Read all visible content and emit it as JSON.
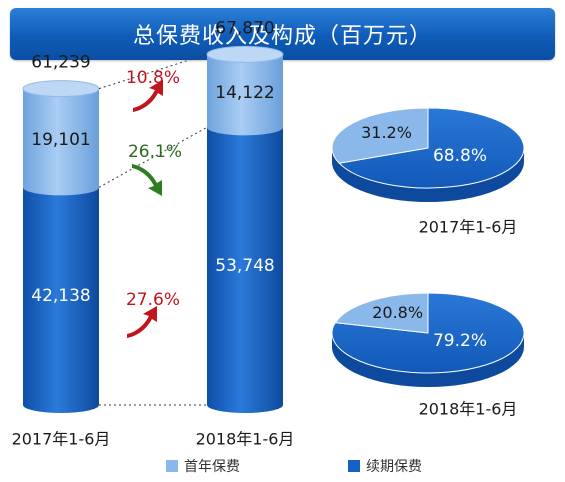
{
  "colors": {
    "first_year": "#8ab8ea",
    "renewal": "#1560c4",
    "renewal_dark": "#0d4a9e",
    "up_red": "#c0141e",
    "down_green": "#2e7d24",
    "pct_red": "#c0141e",
    "pct_green": "#2e6a1e"
  },
  "chart_data": [
    {
      "type": "bar",
      "stacked": true,
      "title": "总保费收入及构成（百万元）",
      "categories": [
        "2017年1-6月",
        "2018年1-6月"
      ],
      "series": [
        {
          "name": "续期保费",
          "values": [
            42138,
            53748
          ],
          "labels": [
            "42,138",
            "53,748"
          ]
        },
        {
          "name": "首年保费",
          "values": [
            19101,
            14122
          ],
          "labels": [
            "19,101",
            "14,122"
          ]
        }
      ],
      "totals": [
        61239,
        67870
      ],
      "total_labels": [
        "61,239",
        "67,870"
      ],
      "growth": [
        {
          "label": "10.8%",
          "direction": "up",
          "applies_to": "total"
        },
        {
          "label": "26.1%",
          "direction": "down",
          "applies_to": "首年保费"
        },
        {
          "label": "27.6%",
          "direction": "up",
          "applies_to": "续期保费"
        }
      ],
      "legend": {
        "position": "bottom",
        "items": [
          "首年保费",
          "续期保费"
        ]
      }
    },
    {
      "type": "pie",
      "label": "2017年1-6月",
      "slices": [
        {
          "name": "首年保费",
          "value": 31.2,
          "label": "31.2%"
        },
        {
          "name": "续期保费",
          "value": 68.8,
          "label": "68.8%"
        }
      ]
    },
    {
      "type": "pie",
      "label": "2018年1-6月",
      "slices": [
        {
          "name": "首年保费",
          "value": 20.8,
          "label": "20.8%"
        },
        {
          "name": "续期保费",
          "value": 79.2,
          "label": "79.2%"
        }
      ]
    }
  ]
}
